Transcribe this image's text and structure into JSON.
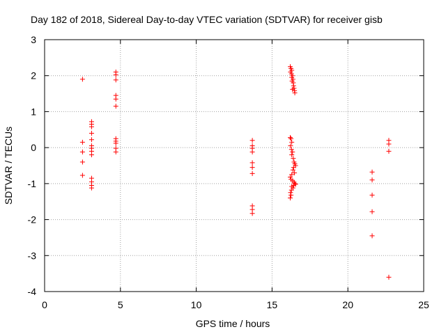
{
  "chart_data": {
    "type": "scatter",
    "title": "Day 182 of 2018, Sidereal Day-to-day VTEC variation (SDTVAR) for receiver gisb",
    "xlabel": "GPS time / hours",
    "ylabel": "SDTVAR / TECUs",
    "xlim": [
      0,
      25
    ],
    "ylim": [
      -4,
      3
    ],
    "grid": true,
    "xticks": [
      "0",
      "5",
      "10",
      "15",
      "20",
      "25"
    ],
    "yticks": [
      "3",
      "2",
      "1",
      "0",
      "-1",
      "-2",
      "-3",
      "-4"
    ],
    "marker_color": "#ff0000",
    "series": [
      {
        "name": "SDTVAR",
        "points": [
          [
            2.5,
            1.9
          ],
          [
            2.5,
            0.15
          ],
          [
            2.5,
            -0.12
          ],
          [
            2.5,
            -0.4
          ],
          [
            2.5,
            -0.77
          ],
          [
            3.1,
            0.72
          ],
          [
            3.1,
            0.65
          ],
          [
            3.1,
            0.58
          ],
          [
            3.1,
            0.4
          ],
          [
            3.1,
            0.22
          ],
          [
            3.1,
            0.05
          ],
          [
            3.1,
            -0.02
          ],
          [
            3.1,
            -0.1
          ],
          [
            3.1,
            -0.2
          ],
          [
            3.1,
            -0.85
          ],
          [
            3.1,
            -0.95
          ],
          [
            3.1,
            -1.05
          ],
          [
            3.1,
            -1.12
          ],
          [
            4.7,
            2.1
          ],
          [
            4.7,
            2.02
          ],
          [
            4.7,
            1.88
          ],
          [
            4.7,
            1.45
          ],
          [
            4.7,
            1.35
          ],
          [
            4.7,
            1.15
          ],
          [
            4.7,
            0.25
          ],
          [
            4.7,
            0.18
          ],
          [
            4.7,
            0.12
          ],
          [
            4.7,
            -0.02
          ],
          [
            4.7,
            -0.12
          ],
          [
            13.7,
            0.2
          ],
          [
            13.7,
            0.05
          ],
          [
            13.7,
            -0.02
          ],
          [
            13.7,
            -0.12
          ],
          [
            13.7,
            -0.42
          ],
          [
            13.7,
            -0.55
          ],
          [
            13.7,
            -0.72
          ],
          [
            13.7,
            -1.62
          ],
          [
            13.7,
            -1.72
          ],
          [
            13.7,
            -1.83
          ],
          [
            16.2,
            2.25
          ],
          [
            16.25,
            2.2
          ],
          [
            16.3,
            2.15
          ],
          [
            16.22,
            2.1
          ],
          [
            16.28,
            2.05
          ],
          [
            16.35,
            2.0
          ],
          [
            16.3,
            1.95
          ],
          [
            16.38,
            1.9
          ],
          [
            16.32,
            1.85
          ],
          [
            16.4,
            1.8
          ],
          [
            16.42,
            1.72
          ],
          [
            16.45,
            1.65
          ],
          [
            16.48,
            1.58
          ],
          [
            16.5,
            1.52
          ],
          [
            16.35,
            1.62
          ],
          [
            16.2,
            0.28
          ],
          [
            16.25,
            0.25
          ],
          [
            16.3,
            0.15
          ],
          [
            16.22,
            0.05
          ],
          [
            16.28,
            -0.05
          ],
          [
            16.35,
            -0.12
          ],
          [
            16.3,
            -0.2
          ],
          [
            16.4,
            -0.3
          ],
          [
            16.45,
            -0.4
          ],
          [
            16.5,
            -0.45
          ],
          [
            16.55,
            -0.5
          ],
          [
            16.42,
            -0.55
          ],
          [
            16.38,
            -0.62
          ],
          [
            16.48,
            -0.7
          ],
          [
            16.3,
            -0.75
          ],
          [
            16.2,
            -0.82
          ],
          [
            16.25,
            -0.88
          ],
          [
            16.35,
            -0.92
          ],
          [
            16.45,
            -0.96
          ],
          [
            16.5,
            -1.0
          ],
          [
            16.55,
            -1.02
          ],
          [
            16.42,
            -1.05
          ],
          [
            16.3,
            -1.08
          ],
          [
            16.38,
            -1.12
          ],
          [
            16.28,
            -1.18
          ],
          [
            16.22,
            -1.25
          ],
          [
            16.25,
            -1.32
          ],
          [
            16.2,
            -1.4
          ],
          [
            21.6,
            -0.68
          ],
          [
            21.6,
            -0.9
          ],
          [
            21.6,
            -1.32
          ],
          [
            21.6,
            -1.78
          ],
          [
            21.6,
            -2.45
          ],
          [
            22.7,
            0.2
          ],
          [
            22.7,
            0.1
          ],
          [
            22.7,
            -0.1
          ],
          [
            22.7,
            -3.6
          ]
        ]
      }
    ]
  }
}
